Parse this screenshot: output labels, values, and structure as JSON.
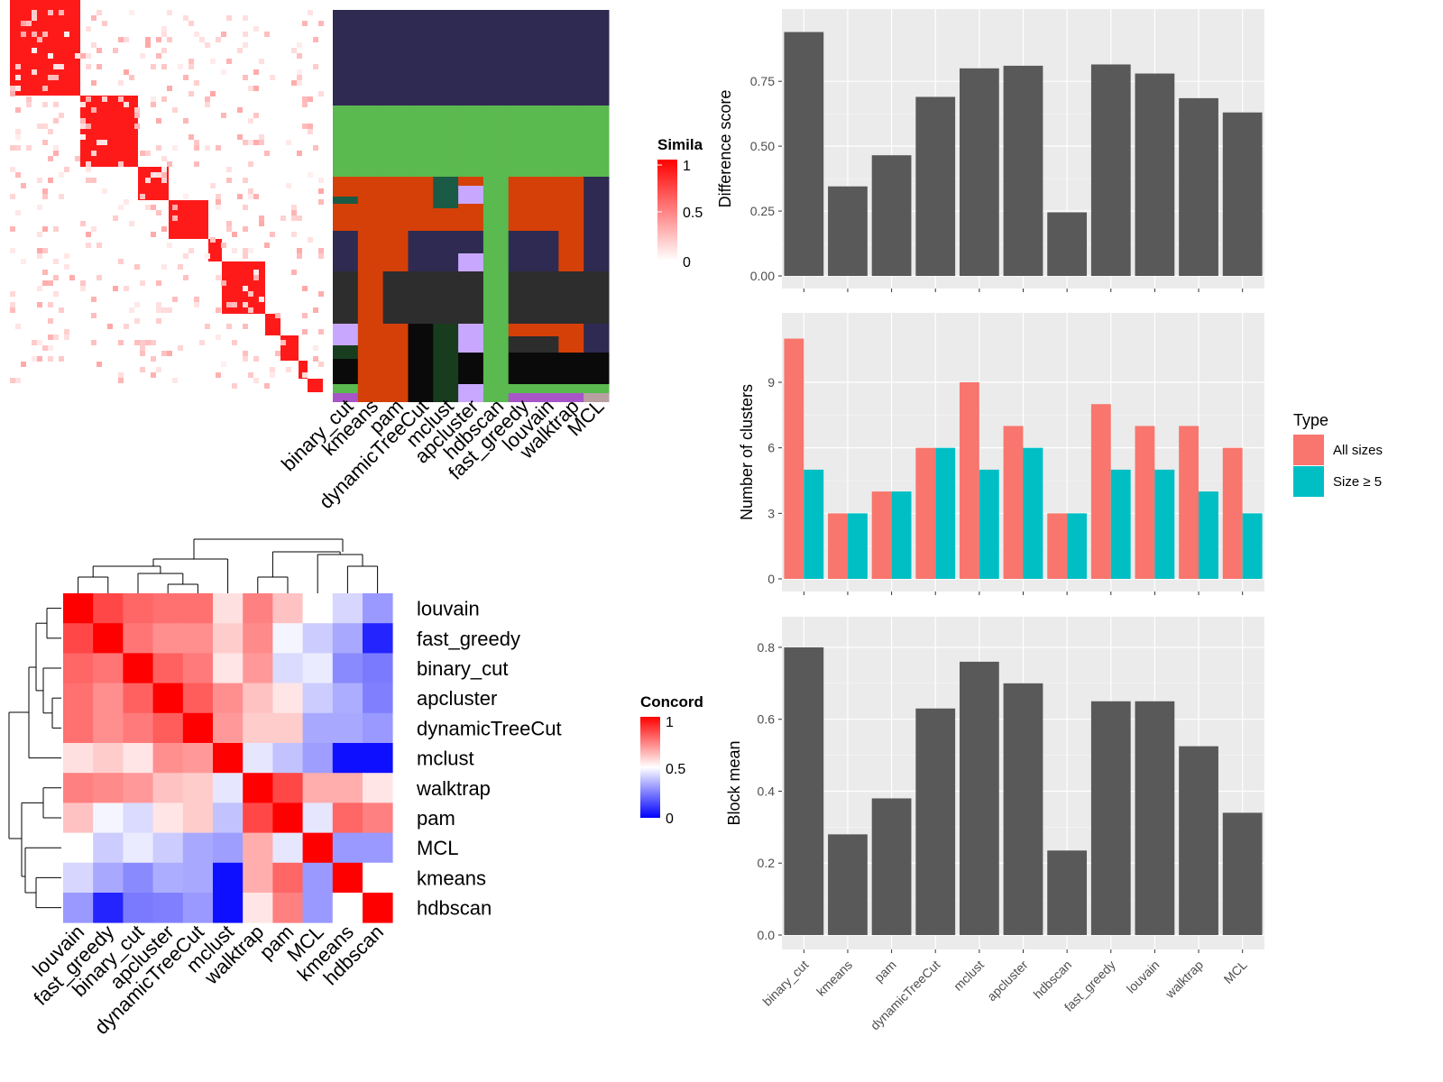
{
  "chart_data": [
    {
      "type": "heatmap",
      "panel": "cell-similarity-heatmap-with-cluster-assignments",
      "legend_title": "Simila",
      "legend_ticks": [
        "1",
        "0.5",
        "0"
      ],
      "colors": {
        "low": "#ffffff",
        "high": "#ff0000"
      },
      "column_labels": [
        "binary_cut",
        "kmeans",
        "pam",
        "dynamicTreeCut",
        "mclust",
        "apcluster",
        "hdbscan",
        "fast_greedy",
        "louvain",
        "walktrap",
        "MCL"
      ],
      "cluster_colors": [
        "#2e2a52",
        "#5ab94f",
        "#d54008",
        "#1b5a44",
        "#c8a8ff",
        "#2d2d2d",
        "#0a0a0a",
        "#173d1e",
        "#a855c8",
        "#b8a0a0"
      ]
    },
    {
      "type": "heatmap",
      "panel": "method-concordance-heatmap",
      "legend_title": "Concord",
      "legend_ticks": [
        "1",
        "0.5",
        "0"
      ],
      "colors": {
        "low": "#0000ff",
        "mid": "#ffffff",
        "high": "#ff0000"
      },
      "row_labels": [
        "louvain",
        "fast_greedy",
        "binary_cut",
        "apcluster",
        "dynamicTreeCut",
        "mclust",
        "walktrap",
        "pam",
        "MCL",
        "kmeans",
        "hdbscan"
      ],
      "column_labels": [
        "louvain",
        "fast_greedy",
        "binary_cut",
        "apcluster",
        "dynamicTreeCut",
        "mclust",
        "walktrap",
        "pam",
        "MCL",
        "kmeans",
        "hdbscan"
      ],
      "values": [
        [
          1.0,
          0.86,
          0.8,
          0.78,
          0.78,
          0.56,
          0.75,
          0.62,
          0.5,
          0.42,
          0.3
        ],
        [
          0.86,
          1.0,
          0.77,
          0.72,
          0.72,
          0.6,
          0.73,
          0.48,
          0.4,
          0.33,
          0.07
        ],
        [
          0.8,
          0.77,
          1.0,
          0.81,
          0.76,
          0.55,
          0.7,
          0.43,
          0.46,
          0.27,
          0.24
        ],
        [
          0.78,
          0.72,
          0.81,
          1.0,
          0.82,
          0.72,
          0.62,
          0.55,
          0.4,
          0.34,
          0.25
        ],
        [
          0.78,
          0.72,
          0.76,
          0.82,
          1.0,
          0.7,
          0.6,
          0.6,
          0.33,
          0.33,
          0.3
        ],
        [
          0.56,
          0.6,
          0.55,
          0.72,
          0.7,
          1.0,
          0.45,
          0.38,
          0.31,
          0.03,
          0.03
        ],
        [
          0.75,
          0.73,
          0.7,
          0.62,
          0.6,
          0.45,
          1.0,
          0.86,
          0.66,
          0.66,
          0.55
        ],
        [
          0.62,
          0.48,
          0.43,
          0.55,
          0.6,
          0.38,
          0.86,
          1.0,
          0.45,
          0.8,
          0.75
        ],
        [
          0.5,
          0.4,
          0.46,
          0.4,
          0.33,
          0.31,
          0.66,
          0.45,
          1.0,
          0.3,
          0.3
        ],
        [
          0.42,
          0.33,
          0.27,
          0.34,
          0.33,
          0.03,
          0.66,
          0.8,
          0.3,
          1.0,
          0.5
        ],
        [
          0.3,
          0.07,
          0.24,
          0.25,
          0.3,
          0.03,
          0.55,
          0.75,
          0.3,
          0.5,
          1.0
        ]
      ]
    },
    {
      "type": "bar",
      "panel": "difference-score",
      "categories": [
        "binary_cut",
        "kmeans",
        "pam",
        "dynamicTreeCut",
        "mclust",
        "apcluster",
        "hdbscan",
        "fast_greedy",
        "louvain",
        "walktrap",
        "MCL"
      ],
      "values": [
        0.94,
        0.345,
        0.465,
        0.69,
        0.8,
        0.81,
        0.245,
        0.815,
        0.78,
        0.685,
        0.63
      ],
      "ylabel": "Difference score",
      "ylim": [
        0,
        0.98
      ],
      "yticks": [
        "0.00",
        "0.25",
        "0.50",
        "0.75"
      ],
      "bar_color": "#595959"
    },
    {
      "type": "bar",
      "panel": "number-of-clusters",
      "categories": [
        "binary_cut",
        "kmeans",
        "pam",
        "dynamicTreeCut",
        "mclust",
        "apcluster",
        "hdbscan",
        "fast_greedy",
        "louvain",
        "walktrap",
        "MCL"
      ],
      "series": [
        {
          "name": "All sizes",
          "color": "#f8766d",
          "values": [
            11,
            3,
            4,
            6,
            9,
            7,
            3,
            8,
            7,
            7,
            6
          ]
        },
        {
          "name": "Size ≥ 5",
          "color": "#00bfc4",
          "values": [
            5,
            3,
            4,
            6,
            5,
            6,
            3,
            5,
            5,
            4,
            3
          ]
        }
      ],
      "ylabel": "Number of clusters",
      "ylim": [
        0,
        11.6
      ],
      "yticks": [
        "0",
        "3",
        "6",
        "9"
      ],
      "legend_title": "Type",
      "legend_position": "right"
    },
    {
      "type": "bar",
      "panel": "block-mean",
      "categories": [
        "binary_cut",
        "kmeans",
        "pam",
        "dynamicTreeCut",
        "mclust",
        "apcluster",
        "hdbscan",
        "fast_greedy",
        "louvain",
        "walktrap",
        "MCL"
      ],
      "values": [
        0.8,
        0.28,
        0.38,
        0.63,
        0.76,
        0.7,
        0.235,
        0.65,
        0.65,
        0.525,
        0.34
      ],
      "ylabel": "Block mean",
      "ylim": [
        0,
        0.845
      ],
      "yticks": [
        "0.0",
        "0.2",
        "0.4",
        "0.6",
        "0.8"
      ],
      "bar_color": "#595959"
    }
  ]
}
